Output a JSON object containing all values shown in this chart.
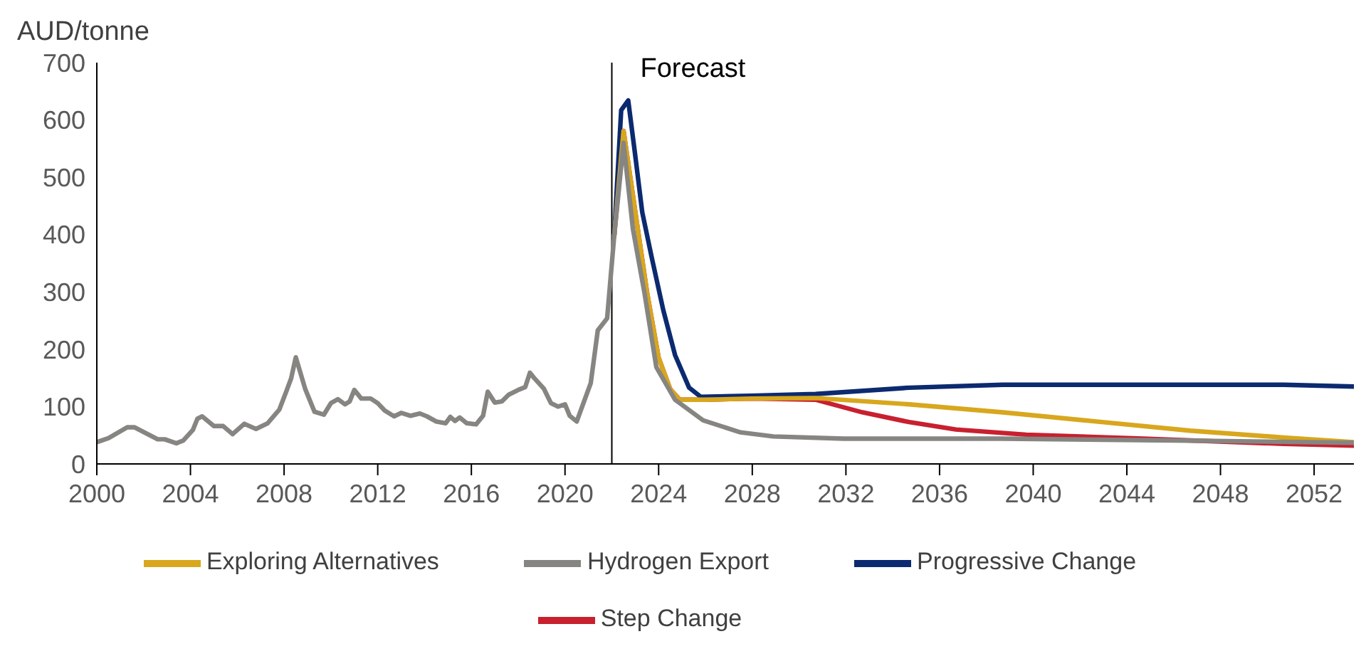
{
  "chart_data": {
    "type": "line",
    "ylabel": "AUD/tonne",
    "xlim": [
      2000,
      2053.7
    ],
    "xticks": [
      2000,
      2004,
      2008,
      2012,
      2016,
      2020,
      2024,
      2028,
      2032,
      2036,
      2040,
      2044,
      2048,
      2052
    ],
    "ylim": [
      0,
      700
    ],
    "yticks": [
      0,
      100,
      200,
      300,
      400,
      500,
      600,
      700
    ],
    "grid": false,
    "legend": "bottom",
    "marker": "none",
    "line_style": "solid",
    "ref_lines": [
      {
        "axis": "x",
        "value": 2022,
        "label": "Forecast",
        "color": "#000000"
      }
    ],
    "series": [
      {
        "name": "Step Change",
        "color": "#c8202f",
        "x": [
          2022.1,
          2022.5,
          2023.0,
          2023.5,
          2024.0,
          2024.5,
          2024.9,
          2026,
          2028,
          2030.7,
          2032.7,
          2034.7,
          2036.7,
          2039.7,
          2044.7,
          2050.7,
          2053.7
        ],
        "values": [
          397,
          581,
          440,
          300,
          185,
          130,
          112,
          112,
          114,
          112,
          90,
          73,
          60,
          51,
          44,
          35,
          32
        ]
      },
      {
        "name": "Progressive Change",
        "color": "#0b2a6f",
        "x": [
          2022.1,
          2022.4,
          2022.7,
          2023.0,
          2023.3,
          2023.7,
          2024.2,
          2024.7,
          2025.3,
          2025.8,
          2027.9,
          2030.7,
          2034.7,
          2038.7,
          2050.7,
          2053.7
        ],
        "values": [
          397,
          617,
          634,
          538,
          439,
          361,
          268,
          190,
          133,
          117,
          119,
          122,
          133,
          138,
          138,
          135
        ]
      },
      {
        "name": "Exploring Alternatives",
        "color": "#d8a71d",
        "x": [
          2022.1,
          2022.5,
          2023.0,
          2023.5,
          2024.0,
          2024.5,
          2024.9,
          2026,
          2028,
          2030.7,
          2034.7,
          2038.7,
          2042.7,
          2046.7,
          2050.7,
          2053.7
        ],
        "values": [
          397,
          581,
          440,
          300,
          185,
          130,
          112,
          112,
          114,
          115,
          104,
          90,
          74,
          58,
          46,
          38
        ]
      },
      {
        "name": "Hydrogen Export",
        "color": "#868581",
        "x": [
          2000,
          2000.5,
          2001.3,
          2001.6,
          2002.6,
          2002.9,
          2003.4,
          2003.7,
          2004.1,
          2004.3,
          2004.5,
          2005,
          2005.4,
          2005.8,
          2006.3,
          2006.8,
          2007.3,
          2007.8,
          2008.1,
          2008.3,
          2008.5,
          2008.9,
          2009.3,
          2009.7,
          2010,
          2010.3,
          2010.6,
          2010.8,
          2011,
          2011.3,
          2011.7,
          2012,
          2012.3,
          2012.7,
          2013,
          2013.4,
          2013.8,
          2014.1,
          2014.5,
          2014.9,
          2015.1,
          2015.3,
          2015.5,
          2015.8,
          2016.2,
          2016.5,
          2016.7,
          2017,
          2017.3,
          2017.6,
          2018,
          2018.3,
          2018.5,
          2018.7,
          2019.1,
          2019.4,
          2019.7,
          2020,
          2020.2,
          2020.5,
          2021.1,
          2021.4,
          2021.8,
          2022.1,
          2022.5,
          2022.9,
          2023.4,
          2023.9,
          2024.7,
          2025.9,
          2027.5,
          2028.9,
          2031.9,
          2038.7,
          2046,
          2053.7
        ],
        "values": [
          38,
          45,
          64,
          64,
          43,
          43,
          36,
          41,
          59,
          79,
          83,
          66,
          66,
          52,
          70,
          61,
          71,
          95,
          127,
          149,
          186,
          131,
          91,
          86,
          106,
          113,
          104,
          109,
          129,
          114,
          114,
          106,
          93,
          83,
          89,
          84,
          88,
          83,
          74,
          71,
          82,
          75,
          81,
          71,
          69,
          84,
          126,
          107,
          109,
          121,
          129,
          134,
          159,
          149,
          131,
          106,
          100,
          104,
          84,
          74,
          141,
          233,
          254,
          397,
          560,
          410,
          297,
          169,
          112,
          76,
          55,
          48,
          44,
          44,
          41,
          37
        ]
      }
    ]
  }
}
